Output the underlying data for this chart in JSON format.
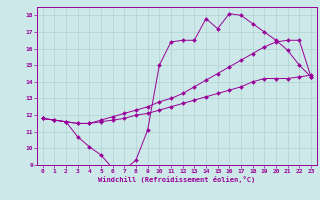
{
  "xlabel": "Windchill (Refroidissement éolien,°C)",
  "background_color": "#cce8e8",
  "line_color": "#990099",
  "xlim": [
    -0.5,
    23.5
  ],
  "ylim": [
    9,
    18.5
  ],
  "xtick_vals": [
    0,
    1,
    2,
    3,
    4,
    5,
    6,
    7,
    8,
    9,
    10,
    11,
    12,
    13,
    14,
    15,
    16,
    17,
    18,
    19,
    20,
    21,
    22,
    23
  ],
  "ytick_vals": [
    9,
    10,
    11,
    12,
    13,
    14,
    15,
    16,
    17,
    18
  ],
  "series": [
    {
      "x": [
        0,
        1,
        2,
        3,
        4,
        5,
        6,
        7,
        8,
        9,
        10,
        11,
        12,
        13,
        14,
        15,
        16,
        17,
        18,
        19,
        20,
        21,
        22,
        23
      ],
      "y": [
        11.8,
        11.7,
        11.6,
        10.7,
        10.1,
        9.6,
        8.8,
        8.7,
        9.3,
        11.1,
        15.0,
        16.4,
        16.5,
        16.5,
        17.8,
        17.2,
        18.1,
        18.0,
        17.5,
        17.0,
        16.5,
        15.9,
        15.0,
        14.3
      ]
    },
    {
      "x": [
        0,
        1,
        2,
        3,
        4,
        5,
        6,
        7,
        8,
        9,
        10,
        11,
        12,
        13,
        14,
        15,
        16,
        17,
        18,
        19,
        20,
        21,
        22,
        23
      ],
      "y": [
        11.8,
        11.7,
        11.6,
        11.5,
        11.5,
        11.6,
        11.7,
        11.8,
        12.0,
        12.1,
        12.3,
        12.5,
        12.7,
        12.9,
        13.1,
        13.3,
        13.5,
        13.7,
        14.0,
        14.2,
        14.2,
        14.2,
        14.3,
        14.4
      ]
    },
    {
      "x": [
        0,
        1,
        2,
        3,
        4,
        5,
        6,
        7,
        8,
        9,
        10,
        11,
        12,
        13,
        14,
        15,
        16,
        17,
        18,
        19,
        20,
        21,
        22,
        23
      ],
      "y": [
        11.8,
        11.7,
        11.6,
        11.5,
        11.5,
        11.7,
        11.9,
        12.1,
        12.3,
        12.5,
        12.8,
        13.0,
        13.3,
        13.7,
        14.1,
        14.5,
        14.9,
        15.3,
        15.7,
        16.1,
        16.4,
        16.5,
        16.5,
        14.3
      ]
    }
  ]
}
